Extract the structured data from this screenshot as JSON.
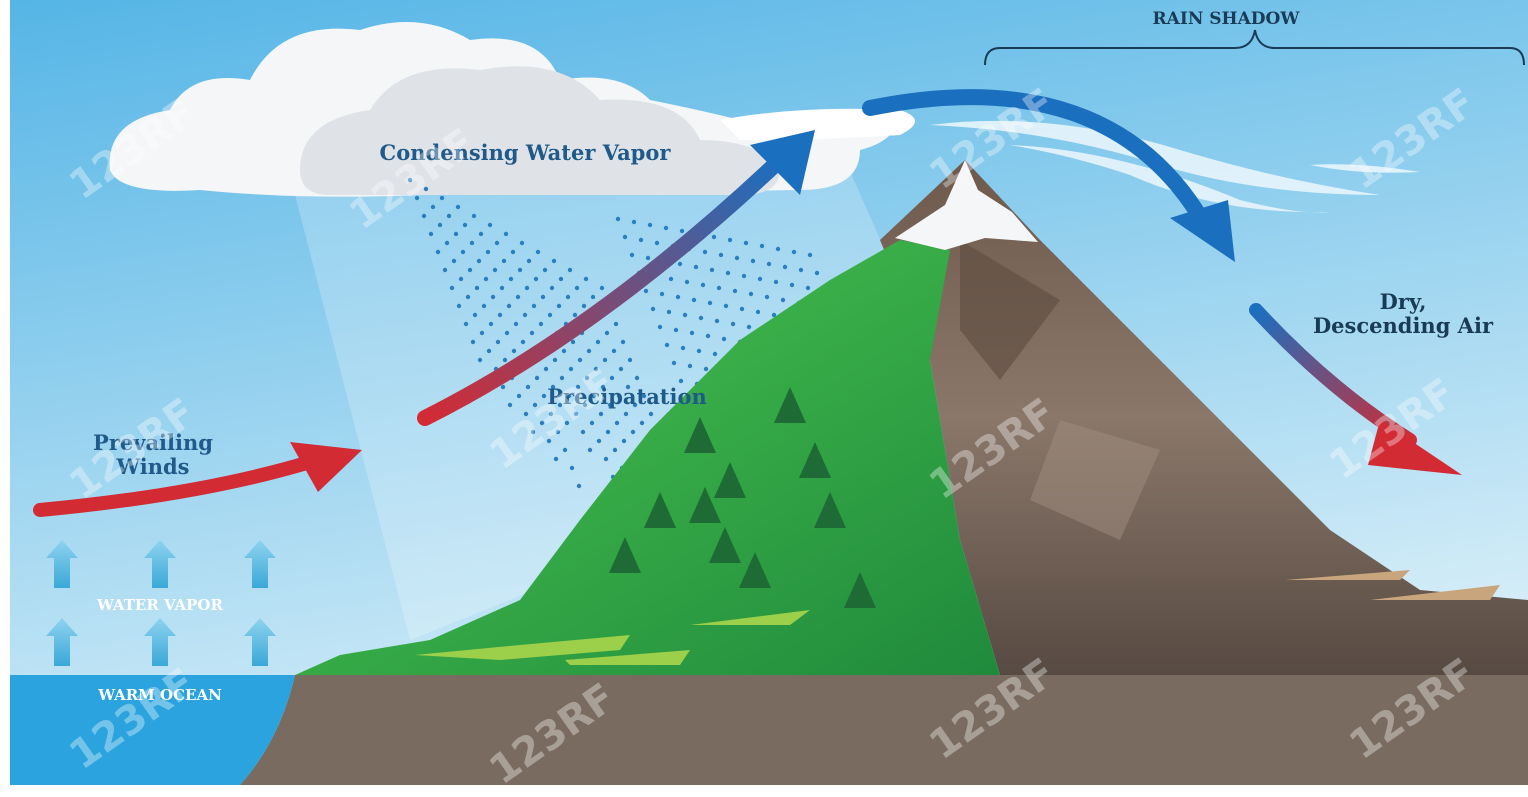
{
  "title": "RAIN SHADOW",
  "labels": {
    "condensing": "Condensing Water Vapor",
    "precipitation": "Precipatation",
    "prevailing": [
      "Prevailing",
      "Winds"
    ],
    "dry": [
      "Dry,",
      "Descending Air"
    ],
    "water_vapor": "WATER VAPOR",
    "warm_ocean": "WARM OCEAN"
  },
  "watermark": "123RF"
}
